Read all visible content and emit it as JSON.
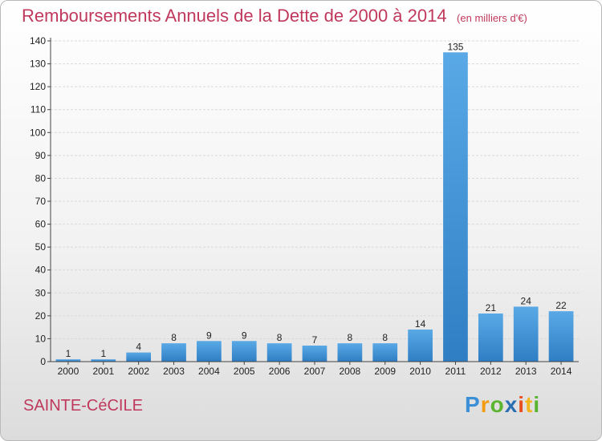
{
  "header": {
    "title": "Remboursements Annuels de la Dette de 2000 à 2014",
    "unit": "(en milliers d'€)"
  },
  "commune": "SAINTE-CéCILE",
  "logo": {
    "letters": [
      "P",
      "r",
      "o",
      "x",
      "i",
      "t",
      "i"
    ],
    "colors": [
      "#3a8fd6",
      "#f39c12",
      "#5bb531",
      "#2b6fb3",
      "#e84e1b",
      "#f3b51d",
      "#58b42e"
    ]
  },
  "colors": {
    "bar_top": "#5aa9e6",
    "bar_bottom": "#2f7ec4",
    "title": "#c0395c",
    "grid": "#d9d9d9"
  },
  "chart_data": {
    "type": "bar",
    "title": "Remboursements Annuels de la Dette de 2000 à 2014",
    "subtitle": "(en milliers d'€)",
    "categories": [
      "2000",
      "2001",
      "2002",
      "2003",
      "2004",
      "2005",
      "2006",
      "2007",
      "2008",
      "2009",
      "2010",
      "2011",
      "2012",
      "2013",
      "2014"
    ],
    "values": [
      1,
      1,
      4,
      8,
      9,
      9,
      8,
      7,
      8,
      8,
      14,
      135,
      21,
      24,
      22
    ],
    "value_labels": [
      "1",
      "1",
      "4",
      "8",
      "9",
      "9",
      "8",
      "7",
      "8",
      "8",
      "14",
      "135",
      "21",
      "24",
      "22"
    ],
    "yticks": [
      "0",
      "10",
      "20",
      "30",
      "40",
      "50",
      "60",
      "70",
      "80",
      "90",
      "100",
      "110",
      "120",
      "130",
      "140"
    ],
    "ylim": [
      0,
      140
    ],
    "grid": true,
    "legend": "none"
  }
}
